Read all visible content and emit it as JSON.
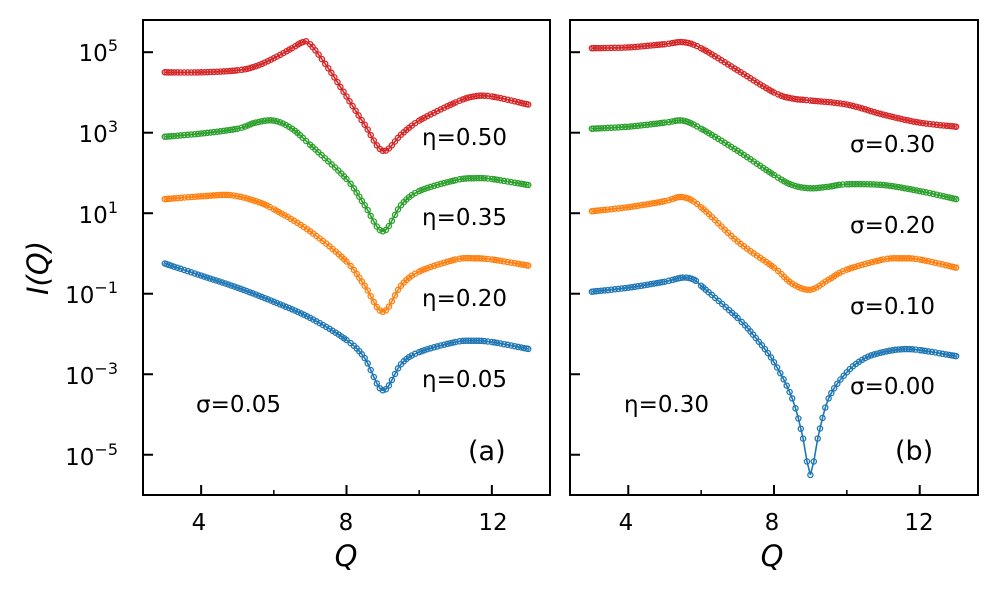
{
  "figure": {
    "ylabel": "I(Q)",
    "xlabel": "Q",
    "y_tick_labels": [
      {
        "exp": 5,
        "text": "10",
        "sup": "5"
      },
      {
        "exp": 3,
        "text": "10",
        "sup": "3"
      },
      {
        "exp": 1,
        "text": "10",
        "sup": "1"
      },
      {
        "exp": -1,
        "text": "10",
        "sup": "−1"
      },
      {
        "exp": -3,
        "text": "10",
        "sup": "−3"
      },
      {
        "exp": -5,
        "text": "10",
        "sup": "−5"
      }
    ],
    "x_tick_labels": [
      "4",
      "8",
      "12"
    ]
  },
  "chart_data": [
    {
      "type": "line",
      "panel": "(a)",
      "panel_label": "(a)",
      "fixed_param_label": "σ=0.05",
      "xlabel": "Q",
      "ylabel": "I(Q)",
      "xlim": [
        2.4,
        13.6
      ],
      "ylim_log10": [
        -6.0,
        5.8
      ],
      "x_ticks": [
        4,
        8,
        12
      ],
      "x_minor_ticks": [
        6,
        10
      ],
      "y_ticks_log10": [
        -5,
        -3,
        -1,
        1,
        3,
        5
      ],
      "y_minor_ticks_log10": [
        -4,
        -2,
        0,
        2,
        4
      ],
      "series": [
        {
          "name": "η=0.05",
          "label": "η=0.05",
          "color": "#1f77b4",
          "points": [
            [
              3.0,
              -0.25
            ],
            [
              4.0,
              -0.55
            ],
            [
              5.0,
              -0.85
            ],
            [
              6.0,
              -1.2
            ],
            [
              7.0,
              -1.6
            ],
            [
              8.0,
              -2.15
            ],
            [
              8.5,
              -2.6
            ],
            [
              9.0,
              -3.4
            ],
            [
              9.5,
              -2.75
            ],
            [
              10.0,
              -2.45
            ],
            [
              11.0,
              -2.2
            ],
            [
              11.5,
              -2.17
            ],
            [
              12.0,
              -2.2
            ],
            [
              13.0,
              -2.37
            ]
          ]
        },
        {
          "name": "η=0.20",
          "label": "η=0.20",
          "color": "#ff7f0e",
          "points": [
            [
              3.0,
              1.35
            ],
            [
              4.0,
              1.42
            ],
            [
              4.8,
              1.45
            ],
            [
              5.5,
              1.3
            ],
            [
              6.0,
              1.1
            ],
            [
              7.0,
              0.55
            ],
            [
              8.0,
              -0.2
            ],
            [
              8.5,
              -0.8
            ],
            [
              9.0,
              -1.45
            ],
            [
              9.5,
              -0.8
            ],
            [
              10.0,
              -0.45
            ],
            [
              11.0,
              -0.15
            ],
            [
              11.5,
              -0.12
            ],
            [
              12.0,
              -0.15
            ],
            [
              13.0,
              -0.3
            ]
          ]
        },
        {
          "name": "η=0.35",
          "label": "η=0.35",
          "color": "#2ca02c",
          "points": [
            [
              3.0,
              2.9
            ],
            [
              4.0,
              2.98
            ],
            [
              5.0,
              3.1
            ],
            [
              5.5,
              3.25
            ],
            [
              6.0,
              3.3
            ],
            [
              6.5,
              3.1
            ],
            [
              7.0,
              2.7
            ],
            [
              8.0,
              1.85
            ],
            [
              8.5,
              1.2
            ],
            [
              9.0,
              0.55
            ],
            [
              9.5,
              1.2
            ],
            [
              10.0,
              1.55
            ],
            [
              11.0,
              1.82
            ],
            [
              11.5,
              1.87
            ],
            [
              12.0,
              1.85
            ],
            [
              13.0,
              1.7
            ]
          ]
        },
        {
          "name": "η=0.50",
          "label": "η=0.50",
          "color": "#d62728",
          "points": [
            [
              3.0,
              4.5
            ],
            [
              4.0,
              4.5
            ],
            [
              5.0,
              4.55
            ],
            [
              5.5,
              4.65
            ],
            [
              6.0,
              4.85
            ],
            [
              6.5,
              5.1
            ],
            [
              6.8,
              5.25
            ],
            [
              7.0,
              5.2
            ],
            [
              7.5,
              4.6
            ],
            [
              8.0,
              3.9
            ],
            [
              8.5,
              3.2
            ],
            [
              9.0,
              2.55
            ],
            [
              9.5,
              2.95
            ],
            [
              10.0,
              3.3
            ],
            [
              11.0,
              3.75
            ],
            [
              11.5,
              3.9
            ],
            [
              12.0,
              3.9
            ],
            [
              13.0,
              3.7
            ]
          ]
        }
      ]
    },
    {
      "type": "line",
      "panel": "(b)",
      "panel_label": "(b)",
      "fixed_param_label": "η=0.30",
      "xlabel": "Q",
      "ylabel": "",
      "xlim": [
        2.4,
        13.6
      ],
      "ylim_log10": [
        -6.0,
        5.8
      ],
      "x_ticks": [
        4,
        8,
        12
      ],
      "x_minor_ticks": [
        6,
        10
      ],
      "y_ticks_log10": [
        -5,
        -3,
        -1,
        1,
        3,
        5
      ],
      "y_minor_ticks_log10": [
        -4,
        -2,
        0,
        2,
        4
      ],
      "series": [
        {
          "name": "σ=0.00",
          "label": "σ=0.00",
          "color": "#1f77b4",
          "points": [
            [
              3.0,
              -0.95
            ],
            [
              4.0,
              -0.85
            ],
            [
              5.0,
              -0.7
            ],
            [
              5.5,
              -0.6
            ],
            [
              5.8,
              -0.65
            ],
            [
              6.0,
              -0.8
            ],
            [
              7.0,
              -1.6
            ],
            [
              7.5,
              -2.1
            ],
            [
              8.0,
              -2.7
            ],
            [
              8.5,
              -3.6
            ],
            [
              8.8,
              -4.6
            ],
            [
              9.0,
              -5.5
            ],
            [
              9.2,
              -4.6
            ],
            [
              9.5,
              -3.6
            ],
            [
              10.0,
              -2.95
            ],
            [
              10.5,
              -2.6
            ],
            [
              11.0,
              -2.45
            ],
            [
              11.5,
              -2.38
            ],
            [
              12.0,
              -2.4
            ],
            [
              13.0,
              -2.55
            ]
          ]
        },
        {
          "name": "σ=0.10",
          "label": "σ=0.10",
          "color": "#ff7f0e",
          "points": [
            [
              3.0,
              1.05
            ],
            [
              4.0,
              1.15
            ],
            [
              5.0,
              1.3
            ],
            [
              5.5,
              1.4
            ],
            [
              6.0,
              1.15
            ],
            [
              7.0,
              0.3
            ],
            [
              8.0,
              -0.35
            ],
            [
              8.5,
              -0.75
            ],
            [
              9.0,
              -0.9
            ],
            [
              9.5,
              -0.65
            ],
            [
              10.0,
              -0.4
            ],
            [
              11.0,
              -0.15
            ],
            [
              11.5,
              -0.12
            ],
            [
              12.0,
              -0.15
            ],
            [
              13.0,
              -0.35
            ]
          ]
        },
        {
          "name": "σ=0.20",
          "label": "σ=0.20",
          "color": "#2ca02c",
          "points": [
            [
              3.0,
              3.1
            ],
            [
              4.0,
              3.15
            ],
            [
              5.0,
              3.25
            ],
            [
              5.5,
              3.3
            ],
            [
              6.0,
              3.1
            ],
            [
              7.0,
              2.55
            ],
            [
              8.0,
              1.95
            ],
            [
              8.5,
              1.7
            ],
            [
              9.0,
              1.62
            ],
            [
              9.5,
              1.66
            ],
            [
              10.0,
              1.72
            ],
            [
              11.0,
              1.7
            ],
            [
              12.0,
              1.55
            ],
            [
              13.0,
              1.35
            ]
          ]
        },
        {
          "name": "σ=0.30",
          "label": "σ=0.30",
          "color": "#d62728",
          "points": [
            [
              3.0,
              5.1
            ],
            [
              4.0,
              5.12
            ],
            [
              5.0,
              5.2
            ],
            [
              5.5,
              5.25
            ],
            [
              6.0,
              5.1
            ],
            [
              7.0,
              4.55
            ],
            [
              8.0,
              4.0
            ],
            [
              8.5,
              3.85
            ],
            [
              9.0,
              3.8
            ],
            [
              10.0,
              3.7
            ],
            [
              11.0,
              3.45
            ],
            [
              12.0,
              3.25
            ],
            [
              13.0,
              3.15
            ]
          ]
        }
      ]
    }
  ]
}
